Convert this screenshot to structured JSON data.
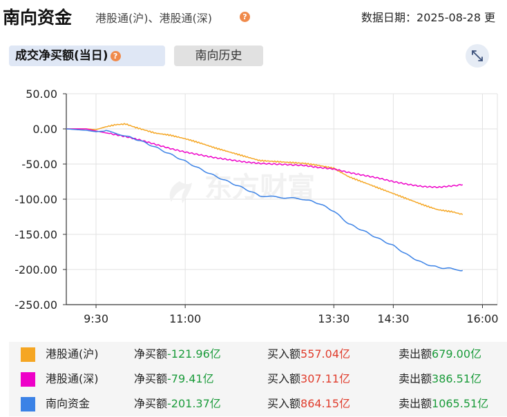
{
  "header": {
    "title": "南向资金",
    "subtitle": "港股通(沪)、港股通(深)",
    "help": "?",
    "date_label": "数据日期：",
    "date": "2025-08-28",
    "date_more": "更"
  },
  "tabs": [
    {
      "label": "成交净买额(当日)",
      "active": true
    },
    {
      "label": "南向历史",
      "active": false
    }
  ],
  "icons": {
    "expand": "expand-icon",
    "help": "question-icon"
  },
  "chart_data": {
    "type": "line",
    "ylim": [
      -250,
      50
    ],
    "yticks": [
      "50.00",
      "0.00",
      "-50.00",
      "-100.00",
      "-150.00",
      "-200.00",
      "-250.00"
    ],
    "xlim": [
      "9:00",
      "16:15"
    ],
    "xtick_labels": [
      "9:30",
      "11:00",
      "13:30",
      "14:30",
      "16:00"
    ],
    "x_axis_times": [
      "9:30",
      "11:00",
      "13:30",
      "14:30",
      "16:00"
    ],
    "grid": true,
    "watermark": "东方财富",
    "series": [
      {
        "name": "港股通(沪)",
        "color": "#f5a623",
        "points": [
          [
            "9:00",
            0
          ],
          [
            "9:20",
            0
          ],
          [
            "9:30",
            -1
          ],
          [
            "9:40",
            3
          ],
          [
            "9:50",
            6
          ],
          [
            "10:00",
            7
          ],
          [
            "10:10",
            2
          ],
          [
            "10:20",
            -2
          ],
          [
            "10:30",
            -6
          ],
          [
            "10:45",
            -9
          ],
          [
            "11:00",
            -14
          ],
          [
            "11:15",
            -20
          ],
          [
            "11:30",
            -27
          ],
          [
            "11:45",
            -33
          ],
          [
            "12:00",
            -39
          ],
          [
            "12:15",
            -45
          ],
          [
            "13:00",
            -49
          ],
          [
            "13:15",
            -52
          ],
          [
            "13:30",
            -56
          ],
          [
            "13:45",
            -68
          ],
          [
            "14:00",
            -76
          ],
          [
            "14:15",
            -84
          ],
          [
            "14:30",
            -92
          ],
          [
            "14:45",
            -100
          ],
          [
            "15:00",
            -108
          ],
          [
            "15:15",
            -115
          ],
          [
            "15:30",
            -118
          ],
          [
            "15:40",
            -121.96
          ]
        ]
      },
      {
        "name": "港股通(深)",
        "color": "#ee00c8",
        "points": [
          [
            "9:00",
            0
          ],
          [
            "9:20",
            0
          ],
          [
            "9:30",
            -3
          ],
          [
            "9:45",
            -7
          ],
          [
            "10:00",
            -11
          ],
          [
            "10:15",
            -16
          ],
          [
            "10:30",
            -22
          ],
          [
            "10:45",
            -28
          ],
          [
            "11:00",
            -33
          ],
          [
            "11:15",
            -37
          ],
          [
            "11:30",
            -41
          ],
          [
            "11:45",
            -44
          ],
          [
            "12:00",
            -47
          ],
          [
            "12:15",
            -49
          ],
          [
            "13:00",
            -52
          ],
          [
            "13:15",
            -55
          ],
          [
            "13:30",
            -57
          ],
          [
            "13:45",
            -62
          ],
          [
            "14:00",
            -66
          ],
          [
            "14:15",
            -70
          ],
          [
            "14:30",
            -75
          ],
          [
            "14:45",
            -79
          ],
          [
            "15:00",
            -82
          ],
          [
            "15:15",
            -83
          ],
          [
            "15:30",
            -81
          ],
          [
            "15:40",
            -79.41
          ]
        ]
      },
      {
        "name": "南向资金",
        "color": "#3b82e6",
        "points": [
          [
            "9:00",
            0
          ],
          [
            "9:20",
            -2
          ],
          [
            "9:30",
            -4
          ],
          [
            "9:40",
            -3
          ],
          [
            "9:50",
            -6
          ],
          [
            "10:00",
            -10
          ],
          [
            "10:15",
            -17
          ],
          [
            "10:30",
            -26
          ],
          [
            "10:45",
            -36
          ],
          [
            "11:00",
            -46
          ],
          [
            "11:15",
            -57
          ],
          [
            "11:30",
            -67
          ],
          [
            "11:45",
            -76
          ],
          [
            "12:00",
            -85
          ],
          [
            "12:15",
            -95
          ],
          [
            "13:00",
            -100
          ],
          [
            "13:15",
            -106
          ],
          [
            "13:30",
            -117
          ],
          [
            "13:45",
            -135
          ],
          [
            "14:00",
            -145
          ],
          [
            "14:15",
            -156
          ],
          [
            "14:30",
            -166
          ],
          [
            "14:45",
            -180
          ],
          [
            "15:00",
            -191
          ],
          [
            "15:15",
            -197
          ],
          [
            "15:30",
            -199
          ],
          [
            "15:40",
            -201.37
          ]
        ]
      }
    ]
  },
  "legend": [
    {
      "name": "港股通(沪)",
      "color": "#f5a623",
      "net_label": "净买额",
      "net": "-121.96亿",
      "buy_label": "买入额",
      "buy": "557.04亿",
      "sell_label": "卖出额",
      "sell": "679.00亿"
    },
    {
      "name": "港股通(深)",
      "color": "#ee00c8",
      "net_label": "净买额",
      "net": "-79.41亿",
      "buy_label": "买入额",
      "buy": "307.11亿",
      "sell_label": "卖出额",
      "sell": "386.51亿"
    },
    {
      "name": "南向资金",
      "color": "#3b82e6",
      "net_label": "净买额",
      "net": "-201.37亿",
      "buy_label": "买入额",
      "buy": "864.15亿",
      "sell_label": "卖出额",
      "sell": "1065.51亿"
    }
  ]
}
